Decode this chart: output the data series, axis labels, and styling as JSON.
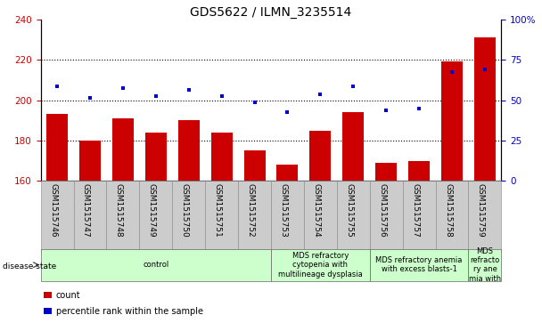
{
  "title": "GDS5622 / ILMN_3235514",
  "categories": [
    "GSM1515746",
    "GSM1515747",
    "GSM1515748",
    "GSM1515749",
    "GSM1515750",
    "GSM1515751",
    "GSM1515752",
    "GSM1515753",
    "GSM1515754",
    "GSM1515755",
    "GSM1515756",
    "GSM1515757",
    "GSM1515758",
    "GSM1515759"
  ],
  "bar_values": [
    193,
    180,
    191,
    184,
    190,
    184,
    175,
    168,
    185,
    194,
    169,
    170,
    219,
    231
  ],
  "dot_values": [
    207,
    201,
    206,
    202,
    205,
    202,
    199,
    194,
    203,
    207,
    195,
    196,
    214,
    215
  ],
  "bar_color": "#cc0000",
  "dot_color": "#0000cc",
  "ylim_left": [
    160,
    240
  ],
  "ylim_right": [
    0,
    100
  ],
  "yticks_left": [
    160,
    180,
    200,
    220,
    240
  ],
  "yticks_right": [
    0,
    25,
    50,
    75,
    100
  ],
  "ytick_labels_right": [
    "0",
    "25",
    "50",
    "75",
    "100%"
  ],
  "grid_values": [
    180,
    200,
    220
  ],
  "disease_groups": [
    {
      "label": "control",
      "start": 0,
      "end": 7,
      "color": "#ccffcc"
    },
    {
      "label": "MDS refractory\ncytopenia with\nmultilineage dysplasia",
      "start": 7,
      "end": 10,
      "color": "#ccffcc"
    },
    {
      "label": "MDS refractory anemia\nwith excess blasts-1",
      "start": 10,
      "end": 13,
      "color": "#ccffcc"
    },
    {
      "label": "MDS\nrefracto\nry ane\nmia with",
      "start": 13,
      "end": 14,
      "color": "#ccffcc"
    }
  ],
  "disease_state_label": "disease state",
  "legend_bar_label": "count",
  "legend_dot_label": "percentile rank within the sample",
  "background_color": "#ffffff",
  "tick_area_bg": "#cccccc",
  "title_fontsize": 10,
  "axis_fontsize": 7.5,
  "label_fontsize": 7,
  "tick_label_fontsize": 6.5,
  "disease_fontsize": 6,
  "legend_fontsize": 7
}
